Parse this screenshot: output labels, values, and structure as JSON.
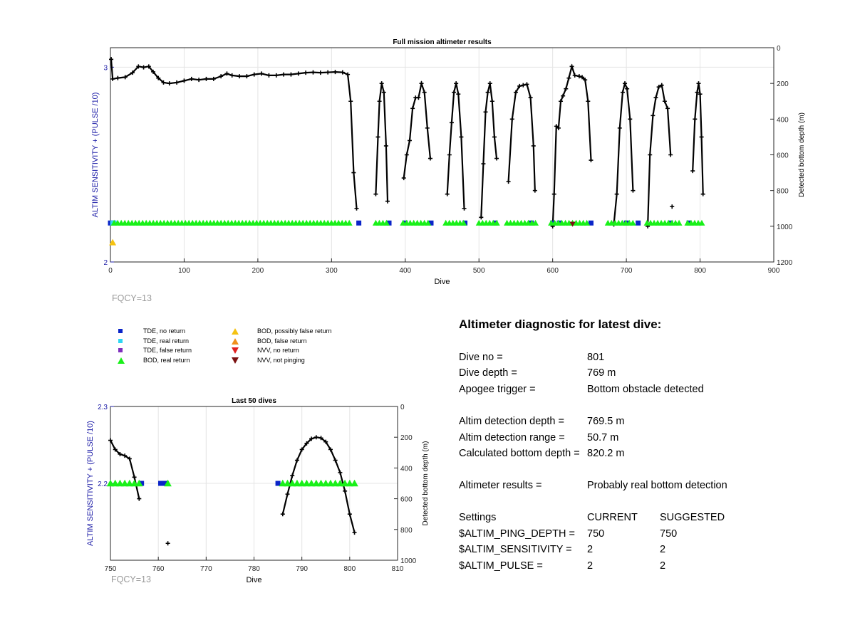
{
  "chart_data": [
    {
      "type": "scatter",
      "title": "Full mission altimeter results",
      "xlabel": "Dive",
      "ylabel_left": "ALTIM SENSITIVITY + (PULSE /10)",
      "ylabel_right": "Detected bottom depth (m)",
      "xlim": [
        0,
        900
      ],
      "ylim_left": [
        2,
        3.1
      ],
      "ylim_right": [
        1200,
        0
      ],
      "x_ticks": [
        "0",
        "100",
        "200",
        "300",
        "400",
        "500",
        "600",
        "700",
        "800",
        "900"
      ],
      "y_left_ticks": [
        "2",
        "3"
      ],
      "y_right_ticks": [
        "0",
        "200",
        "400",
        "600",
        "800",
        "1000",
        "1200"
      ],
      "grid": true,
      "series": [
        {
          "name": "Detected bottom depth",
          "axis": "right",
          "points": [
            [
              1,
              65
            ],
            [
              3,
              175
            ],
            [
              10,
              170
            ],
            [
              20,
              165
            ],
            [
              30,
              140
            ],
            [
              38,
              105
            ],
            [
              45,
              110
            ],
            [
              52,
              105
            ],
            [
              58,
              135
            ],
            [
              65,
              170
            ],
            [
              72,
              195
            ],
            [
              80,
              200
            ],
            [
              90,
              195
            ],
            [
              100,
              185
            ],
            [
              110,
              175
            ],
            [
              120,
              180
            ],
            [
              130,
              175
            ],
            [
              140,
              175
            ],
            [
              150,
              160
            ],
            [
              158,
              145
            ],
            [
              165,
              155
            ],
            [
              175,
              160
            ],
            [
              185,
              160
            ],
            [
              195,
              150
            ],
            [
              205,
              145
            ],
            [
              215,
              155
            ],
            [
              225,
              155
            ],
            [
              235,
              150
            ],
            [
              245,
              150
            ],
            [
              255,
              145
            ],
            [
              265,
              140
            ],
            [
              275,
              138
            ],
            [
              285,
              140
            ],
            [
              295,
              138
            ],
            [
              305,
              136
            ],
            [
              315,
              138
            ],
            [
              322,
              150
            ],
            [
              326,
              300
            ],
            [
              330,
              700
            ],
            [
              334,
              900
            ],
            [
              null,
              null
            ],
            [
              360,
              820
            ],
            [
              363,
              500
            ],
            [
              365,
              300
            ],
            [
              368,
              200
            ],
            [
              371,
              250
            ],
            [
              374,
              550
            ],
            [
              376,
              860
            ],
            [
              null,
              null
            ],
            [
              398,
              730
            ],
            [
              402,
              600
            ],
            [
              406,
              520
            ],
            [
              410,
              340
            ],
            [
              414,
              280
            ],
            [
              418,
              280
            ],
            [
              422,
              200
            ],
            [
              426,
              250
            ],
            [
              430,
              450
            ],
            [
              434,
              620
            ],
            [
              null,
              null
            ],
            [
              457,
              820
            ],
            [
              460,
              600
            ],
            [
              463,
              420
            ],
            [
              466,
              250
            ],
            [
              469,
              200
            ],
            [
              472,
              260
            ],
            [
              476,
              500
            ],
            [
              480,
              900
            ],
            [
              null,
              null
            ],
            [
              503,
              950
            ],
            [
              506,
              650
            ],
            [
              509,
              360
            ],
            [
              512,
              250
            ],
            [
              515,
              200
            ],
            [
              518,
              300
            ],
            [
              521,
              500
            ],
            [
              524,
              620
            ],
            [
              null,
              null
            ],
            [
              540,
              750
            ],
            [
              545,
              400
            ],
            [
              550,
              250
            ],
            [
              555,
              215
            ],
            [
              560,
              210
            ],
            [
              565,
              205
            ],
            [
              570,
              280
            ],
            [
              574,
              550
            ],
            [
              576,
              800
            ],
            [
              null,
              null
            ],
            [
              600,
              1000
            ],
            [
              602,
              820
            ],
            [
              605,
              440
            ],
            [
              608,
              450
            ],
            [
              611,
              300
            ],
            [
              614,
              270
            ],
            [
              618,
              230
            ],
            [
              622,
              170
            ],
            [
              626,
              105
            ],
            [
              630,
              155
            ],
            [
              636,
              160
            ],
            [
              640,
              165
            ],
            [
              644,
              180
            ],
            [
              648,
              300
            ],
            [
              652,
              630
            ],
            [
              null,
              null
            ],
            [
              683,
              990
            ],
            [
              687,
              820
            ],
            [
              691,
              450
            ],
            [
              695,
              250
            ],
            [
              698,
              200
            ],
            [
              701,
              230
            ],
            [
              705,
              400
            ],
            [
              709,
              800
            ],
            [
              null,
              null
            ],
            [
              729,
              1000
            ],
            [
              732,
              600
            ],
            [
              736,
              380
            ],
            [
              740,
              280
            ],
            [
              744,
              220
            ],
            [
              748,
              210
            ],
            [
              752,
              300
            ],
            [
              756,
              340
            ],
            [
              760,
              600
            ],
            [
              null,
              null
            ],
            [
              790,
              690
            ],
            [
              793,
              400
            ],
            [
              796,
              250
            ],
            [
              798,
              200
            ],
            [
              800,
              260
            ],
            [
              802,
              500
            ],
            [
              804,
              820
            ]
          ]
        },
        {
          "name": "TDE, no return",
          "axis": "left",
          "value": 2.2,
          "x": [
            0,
            4,
            337,
            378,
            400,
            435,
            481,
            522,
            571,
            600,
            609,
            652,
            700,
            716,
            760,
            785
          ]
        },
        {
          "name": "TDE, real return",
          "axis": "left",
          "value": 2.2,
          "x": [
            3,
            5
          ]
        },
        {
          "name": "BOD, real return",
          "axis": "left",
          "value": 2.2,
          "ranges": [
            [
              5,
              325
            ],
            [
              360,
              376
            ],
            [
              397,
              432
            ],
            [
              455,
              480
            ],
            [
              500,
              526
            ],
            [
              538,
              578
            ],
            [
              598,
              650
            ],
            [
              675,
              713
            ],
            [
              728,
              772
            ],
            [
              783,
              805
            ]
          ]
        },
        {
          "name": "BOD, possibly false return",
          "axis": "left",
          "points": [
            [
              3,
              2.1
            ]
          ]
        },
        {
          "name": "NVV, not pinging",
          "axis": "left",
          "points": [
            [
              627,
              2.195
            ]
          ]
        },
        {
          "name": "Outlier depth",
          "axis": "right",
          "points": [
            [
              762,
              890
            ],
            [
              1,
              65
            ]
          ]
        }
      ]
    },
    {
      "type": "scatter",
      "title": "Last 50 dives",
      "xlabel": "Dive",
      "ylabel_left": "ALTIM SENSITIVITY + (PULSE /10)",
      "ylabel_right": "Detected bottom depth (m)",
      "xlim": [
        750,
        810
      ],
      "ylim_left": [
        2.1,
        2.3
      ],
      "ylim_right": [
        1000,
        0
      ],
      "x_ticks": [
        "750",
        "760",
        "770",
        "780",
        "790",
        "800",
        "810"
      ],
      "y_left_ticks": [
        "2.2",
        "2.3"
      ],
      "y_right_ticks": [
        "0",
        "200",
        "400",
        "600",
        "800",
        "1000"
      ],
      "grid": true,
      "series": [
        {
          "name": "Detected bottom depth",
          "axis": "right",
          "points": [
            [
              750,
              220
            ],
            [
              751,
              280
            ],
            [
              752,
              310
            ],
            [
              753,
              320
            ],
            [
              754,
              340
            ],
            [
              755,
              460
            ],
            [
              756,
              600
            ],
            [
              null,
              null
            ],
            [
              786,
              700
            ],
            [
              787,
              570
            ],
            [
              788,
              450
            ],
            [
              789,
              350
            ],
            [
              790,
              280
            ],
            [
              791,
              240
            ],
            [
              792,
              210
            ],
            [
              793,
              200
            ],
            [
              794,
              205
            ],
            [
              795,
              230
            ],
            [
              796,
              280
            ],
            [
              797,
              350
            ],
            [
              798,
              430
            ],
            [
              799,
              550
            ],
            [
              800,
              700
            ],
            [
              801,
              820
            ]
          ]
        },
        {
          "name": "TDE, no return",
          "axis": "left",
          "value": 2.2,
          "x": [
            756.5,
            760.5,
            761.5,
            785
          ]
        },
        {
          "name": "BOD, real return",
          "axis": "left",
          "value": 2.2,
          "x": [
            750,
            751,
            752,
            753,
            754,
            755,
            756,
            762,
            786,
            787,
            788,
            789,
            790,
            791,
            792,
            793,
            794,
            795,
            796,
            797,
            798,
            799,
            800,
            801
          ]
        },
        {
          "name": "Outlier depth",
          "axis": "right",
          "points": [
            [
              762,
              890
            ]
          ]
        }
      ]
    }
  ],
  "annotations": {
    "fqcy_top": "FQCY=13",
    "fqcy_bottom": "FQCY=13"
  },
  "legend": {
    "col1": [
      {
        "label": "TDE, no return",
        "symbol": "square",
        "color": "#0a24c8"
      },
      {
        "label": "TDE, real return",
        "symbol": "square",
        "color": "#2fd6f2"
      },
      {
        "label": "TDE, false return",
        "symbol": "square",
        "color": "#7e2fbd"
      },
      {
        "label": "BOD, real return",
        "symbol": "triangle-up",
        "color": "#19f019"
      }
    ],
    "col2": [
      {
        "label": "BOD, possibly false return",
        "symbol": "triangle-up",
        "color": "#f5c211"
      },
      {
        "label": "BOD, false return",
        "symbol": "triangle-up",
        "color": "#f0901a"
      },
      {
        "label": "NVV, no return",
        "symbol": "triangle-down",
        "color": "#e02020"
      },
      {
        "label": "NVV, not pinging",
        "symbol": "triangle-down",
        "color": "#7a1010"
      }
    ]
  },
  "diagnostic": {
    "title": "Altimeter diagnostic for latest dive:",
    "dive_no_label": "Dive no =",
    "dive_no_value": "801",
    "dive_depth_label": "Dive depth =",
    "dive_depth_value": "769 m",
    "apogee_label": "Apogee trigger =",
    "apogee_value": "Bottom obstacle detected",
    "altim_depth_label": "Altim detection depth =",
    "altim_depth_value": "769.5 m",
    "altim_range_label": "Altim detection range =",
    "altim_range_value": "50.7 m",
    "calc_depth_label": "Calculated bottom depth =",
    "calc_depth_value": "820.2 m",
    "results_label": "Altimeter results =",
    "results_value": "Probably real bottom detection",
    "settings_label": "Settings",
    "current_label": "CURRENT",
    "suggested_label": "SUGGESTED",
    "ping_depth_label": "$ALTIM_PING_DEPTH =",
    "ping_depth_current": "750",
    "ping_depth_suggested": "750",
    "sensitivity_label": "$ALTIM_SENSITIVITY =",
    "sensitivity_current": "2",
    "sensitivity_suggested": "2",
    "pulse_label": "$ALTIM_PULSE =",
    "pulse_current": "2",
    "pulse_suggested": "2"
  },
  "colors": {
    "axis_left": "#1a1aa6",
    "tde_no_return": "#0a24c8",
    "bod_real": "#19f019",
    "bod_possibly_false": "#f5c211",
    "nvv_not_pinging": "#7a1010",
    "depth_line": "#000000",
    "grid": "#e4e4e4"
  }
}
